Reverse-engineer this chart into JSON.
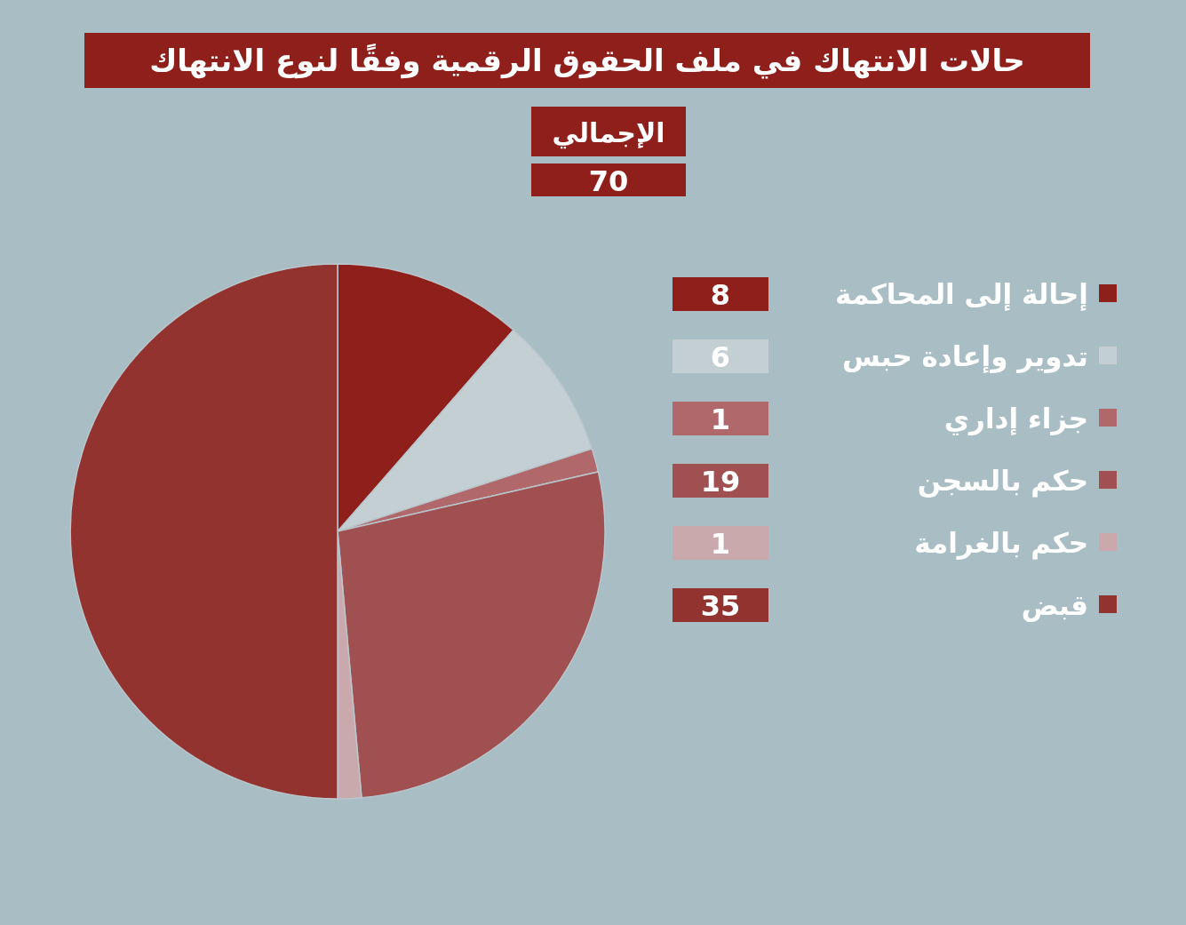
{
  "chart_data": {
    "type": "pie",
    "title": "حالات الانتهاك في ملف الحقوق الرقمية وفقًا لنوع الانتهاك",
    "subtitle": "الإجمالي",
    "annotations": [
      "70"
    ],
    "categories": [
      "إحالة إلى المحاكمة",
      "تدوير وإعادة حبس",
      "جزاء إداري",
      "حكم بالسجن",
      "حكم بالغرامة",
      "قبض"
    ],
    "values": [
      8,
      6,
      1,
      19,
      1,
      35
    ],
    "colors": [
      "#8e1f1a",
      "#c4cfd4",
      "#b0686a",
      "#a05050",
      "#c9a9ab",
      "#93332f"
    ],
    "data_labels": true,
    "legend": "right"
  }
}
